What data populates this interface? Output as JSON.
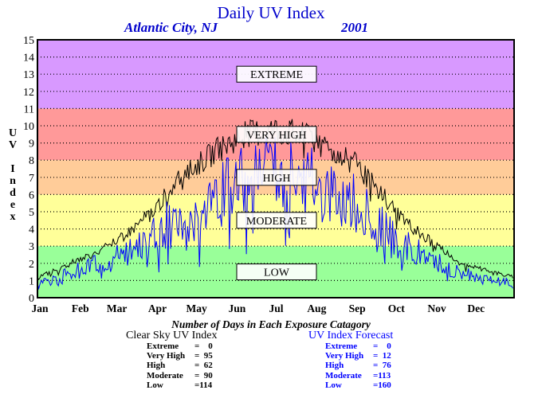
{
  "header": {
    "title": "Daily UV Index",
    "location": "Atlantic City, NJ",
    "year": "2001"
  },
  "y_axis_letters": [
    "U",
    "V",
    "",
    "I",
    "n",
    "d",
    "e",
    "x"
  ],
  "colors": {
    "title": "#0000cc",
    "extreme": "#d899ff",
    "very_high": "#ff9999",
    "high": "#ffcc99",
    "moderate": "#ffff99",
    "low": "#99ff99",
    "clear_sky_line": "#000000",
    "forecast_line": "#0000ff"
  },
  "chart_data": {
    "type": "line",
    "title": "Daily UV Index",
    "subtitle": "Atlantic City, NJ 2001",
    "ylabel": "UV Index",
    "xlabel": "",
    "ylim": [
      0,
      15
    ],
    "y_ticks": [
      0,
      1,
      2,
      3,
      4,
      5,
      6,
      7,
      8,
      9,
      10,
      11,
      12,
      13,
      14,
      15
    ],
    "x_ticks": [
      "Jan",
      "Feb",
      "Mar",
      "Apr",
      "May",
      "Jun",
      "Jul",
      "Aug",
      "Sep",
      "Oct",
      "Nov",
      "Dec"
    ],
    "grid": true,
    "categories": [
      {
        "label": "EXTREME",
        "range": [
          11,
          15
        ],
        "color": "#d899ff"
      },
      {
        "label": "VERY HIGH",
        "range": [
          8,
          11
        ],
        "color": "#ff9999"
      },
      {
        "label": "HIGH",
        "range": [
          6,
          8
        ],
        "color": "#ffcc99"
      },
      {
        "label": "MODERATE",
        "range": [
          3,
          6
        ],
        "color": "#ffff99"
      },
      {
        "label": "LOW",
        "range": [
          0,
          3
        ],
        "color": "#99ff99"
      }
    ],
    "series": [
      {
        "color": "#000000",
        "x": [
          "Jan 1",
          "Jan 15",
          "Feb 1",
          "Feb 15",
          "Mar 1",
          "Mar 15",
          "Apr 1",
          "Apr 15",
          "May 1",
          "May 15",
          "Jun 1",
          "Jun 15",
          "Jul 1",
          "Jul 15",
          "Aug 1",
          "Aug 15",
          "Sep 1",
          "Sep 15",
          "Oct 1",
          "Oct 15",
          "Nov 1",
          "Nov 15",
          "Dec 1",
          "Dec 15",
          "Dec 31"
        ],
        "values": [
          1.2,
          1.6,
          2.2,
          2.6,
          3.2,
          4.0,
          5.2,
          6.5,
          7.6,
          8.4,
          9.2,
          9.6,
          9.8,
          9.6,
          9.2,
          8.6,
          7.8,
          6.6,
          5.2,
          4.1,
          3.1,
          2.3,
          1.8,
          1.5,
          1.2
        ]
      },
      {
        "color": "#0000ff",
        "x": [
          "Jan 1",
          "Jan 15",
          "Feb 1",
          "Feb 15",
          "Mar 1",
          "Mar 15",
          "Apr 1",
          "Apr 15",
          "May 1",
          "May 15",
          "Jun 1",
          "Jun 15",
          "Jul 1",
          "Jul 15",
          "Aug 1",
          "Aug 15",
          "Sep 1",
          "Sep 15",
          "Oct 1",
          "Oct 15",
          "Nov 1",
          "Nov 15",
          "Dec 1",
          "Dec 15",
          "Dec 31"
        ],
        "values": [
          0.9,
          1.1,
          1.6,
          1.9,
          2.4,
          2.9,
          3.6,
          4.6,
          5.4,
          6.1,
          6.6,
          7.2,
          7.3,
          7.0,
          6.7,
          6.3,
          5.6,
          4.4,
          3.6,
          2.8,
          2.1,
          1.6,
          1.2,
          1.0,
          0.9
        ]
      }
    ]
  },
  "summary": {
    "caption": "Number of Days in Each Exposure Catagory",
    "clear_sky": {
      "title": "Clear Sky UV Index",
      "rows": [
        {
          "label": "Extreme",
          "value": "=    0"
        },
        {
          "label": "Very High",
          "value": "=  95"
        },
        {
          "label": "High",
          "value": "=  62"
        },
        {
          "label": "Moderate",
          "value": "=  90"
        },
        {
          "label": "Low",
          "value": "=114"
        }
      ]
    },
    "forecast": {
      "title": "UV Index Forecast",
      "rows": [
        {
          "label": "Extreme",
          "value": "=    0"
        },
        {
          "label": "Very High",
          "value": "=  12"
        },
        {
          "label": "High",
          "value": "=  76"
        },
        {
          "label": "Moderate",
          "value": "=113"
        },
        {
          "label": "Low",
          "value": "=160"
        }
      ]
    }
  }
}
